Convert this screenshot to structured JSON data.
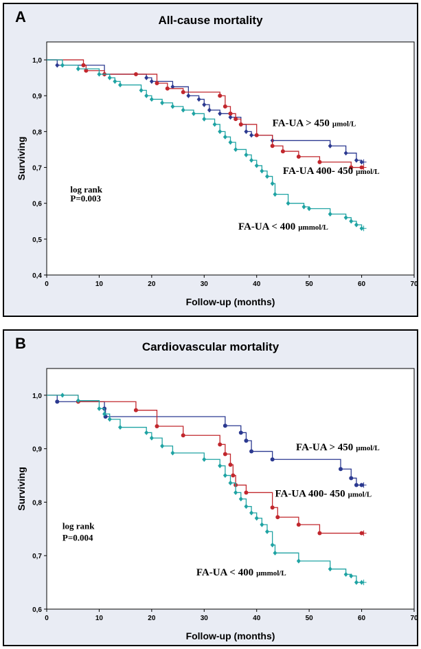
{
  "chart_data": [
    {
      "panel": "A",
      "type": "line",
      "subtype": "kaplan-meier-step",
      "title": "All-cause mortality",
      "xlabel": "Follow-up (months)",
      "ylabel": "Surviving",
      "xlim": [
        0,
        70
      ],
      "ylim": [
        0.4,
        1.05
      ],
      "x_ticks": [
        "0",
        "10",
        "20",
        "30",
        "40",
        "50",
        "60",
        "70"
      ],
      "y_ticks": [
        "0,4",
        "0,5",
        "0,6",
        "0,7",
        "0,8",
        "0,9",
        "1,0"
      ],
      "series": [
        {
          "name": "FA-UA > 450 µmol/L",
          "color": "#2b3990",
          "marker": "diamond",
          "points": [
            [
              0,
              1.0
            ],
            [
              2,
              0.985
            ],
            [
              11,
              0.96
            ],
            [
              19,
              0.95
            ],
            [
              20,
              0.94
            ],
            [
              24,
              0.925
            ],
            [
              27,
              0.9
            ],
            [
              29,
              0.89
            ],
            [
              30,
              0.875
            ],
            [
              31,
              0.86
            ],
            [
              33,
              0.85
            ],
            [
              35,
              0.84
            ],
            [
              37,
              0.82
            ],
            [
              38,
              0.8
            ],
            [
              39,
              0.79
            ],
            [
              43,
              0.775
            ],
            [
              54,
              0.76
            ],
            [
              57,
              0.74
            ],
            [
              59,
              0.72
            ],
            [
              60,
              0.715
            ]
          ]
        },
        {
          "name": "FA-UA 400- 450 µmol/L",
          "color": "#c1272d",
          "marker": "circle",
          "points": [
            [
              0,
              1.0
            ],
            [
              7,
              0.985
            ],
            [
              7.5,
              0.97
            ],
            [
              11,
              0.96
            ],
            [
              17,
              0.96
            ],
            [
              21,
              0.935
            ],
            [
              23,
              0.92
            ],
            [
              26,
              0.91
            ],
            [
              33,
              0.9
            ],
            [
              34,
              0.87
            ],
            [
              35,
              0.85
            ],
            [
              36,
              0.835
            ],
            [
              37,
              0.82
            ],
            [
              40,
              0.79
            ],
            [
              43,
              0.76
            ],
            [
              45,
              0.745
            ],
            [
              48,
              0.73
            ],
            [
              52,
              0.715
            ],
            [
              58,
              0.7
            ],
            [
              60,
              0.7
            ]
          ]
        },
        {
          "name": "FA-UA < 400 µmmol/L",
          "color": "#1fa3a3",
          "marker": "diamond",
          "points": [
            [
              0,
              1.0
            ],
            [
              3,
              0.985
            ],
            [
              6,
              0.975
            ],
            [
              10,
              0.96
            ],
            [
              12,
              0.95
            ],
            [
              13,
              0.94
            ],
            [
              14,
              0.93
            ],
            [
              18,
              0.915
            ],
            [
              19,
              0.9
            ],
            [
              20,
              0.89
            ],
            [
              22,
              0.88
            ],
            [
              24,
              0.87
            ],
            [
              26,
              0.86
            ],
            [
              28,
              0.85
            ],
            [
              30,
              0.835
            ],
            [
              32,
              0.82
            ],
            [
              33,
              0.8
            ],
            [
              34,
              0.785
            ],
            [
              35,
              0.77
            ],
            [
              36,
              0.75
            ],
            [
              38,
              0.735
            ],
            [
              39,
              0.72
            ],
            [
              40,
              0.705
            ],
            [
              41,
              0.69
            ],
            [
              42,
              0.675
            ],
            [
              43,
              0.655
            ],
            [
              43.5,
              0.625
            ],
            [
              46,
              0.6
            ],
            [
              49,
              0.59
            ],
            [
              50,
              0.585
            ],
            [
              54,
              0.57
            ],
            [
              57,
              0.56
            ],
            [
              58,
              0.55
            ],
            [
              59,
              0.54
            ],
            [
              60,
              0.53
            ]
          ]
        }
      ],
      "annotations": [
        {
          "id": "label-high",
          "text": "FA-UA  > 450",
          "unit": "µmol/L",
          "x": 43,
          "y": 0.815
        },
        {
          "id": "label-mid",
          "text": "FA-UA  400- 450",
          "unit": "µmol/L",
          "x": 45,
          "y": 0.682
        },
        {
          "id": "label-low",
          "text": "FA-UA < 400",
          "unit": "µmmol/L",
          "x": 36.5,
          "y": 0.527
        },
        {
          "id": "stat-line1",
          "text": "log rank",
          "x": 4.5,
          "y": 0.63
        },
        {
          "id": "stat-line2",
          "text": "P=0.003",
          "x": 4.5,
          "y": 0.605
        }
      ]
    },
    {
      "panel": "B",
      "type": "line",
      "subtype": "kaplan-meier-step",
      "title": "Cardiovascular mortality",
      "xlabel": "Follow-up (months)",
      "ylabel": "Surviving",
      "xlim": [
        0,
        70
      ],
      "ylim": [
        0.6,
        1.05
      ],
      "x_ticks": [
        "0",
        "10",
        "20",
        "30",
        "40",
        "50",
        "60",
        "70"
      ],
      "y_ticks": [
        "0,6",
        "0,7",
        "0,8",
        "0,9",
        "1,0"
      ],
      "series": [
        {
          "name": "FA-UA > 450 µmol/L",
          "color": "#2b3990",
          "marker": "circle",
          "points": [
            [
              0,
              1.0
            ],
            [
              2,
              0.988
            ],
            [
              11,
              0.975
            ],
            [
              11.2,
              0.96
            ],
            [
              34,
              0.943
            ],
            [
              37,
              0.93
            ],
            [
              38,
              0.915
            ],
            [
              39,
              0.895
            ],
            [
              43,
              0.88
            ],
            [
              56,
              0.862
            ],
            [
              58,
              0.845
            ],
            [
              59,
              0.832
            ],
            [
              60,
              0.832
            ]
          ]
        },
        {
          "name": "FA-UA 400- 450 µmol/L",
          "color": "#c1272d",
          "marker": "circle",
          "points": [
            [
              0,
              1.0
            ],
            [
              6,
              0.988
            ],
            [
              17,
              0.972
            ],
            [
              21,
              0.942
            ],
            [
              26,
              0.925
            ],
            [
              33,
              0.908
            ],
            [
              34,
              0.89
            ],
            [
              35,
              0.87
            ],
            [
              35.5,
              0.85
            ],
            [
              36,
              0.832
            ],
            [
              38,
              0.818
            ],
            [
              43,
              0.79
            ],
            [
              44,
              0.772
            ],
            [
              48,
              0.758
            ],
            [
              52,
              0.742
            ],
            [
              60,
              0.742
            ]
          ]
        },
        {
          "name": "FA-UA < 400 µmmol/L",
          "color": "#1fa3a3",
          "marker": "diamond",
          "points": [
            [
              0,
              1.0
            ],
            [
              3,
              1.0
            ],
            [
              6,
              0.99
            ],
            [
              10,
              0.975
            ],
            [
              11,
              0.965
            ],
            [
              12,
              0.955
            ],
            [
              14,
              0.94
            ],
            [
              19,
              0.93
            ],
            [
              20,
              0.92
            ],
            [
              22,
              0.905
            ],
            [
              24,
              0.892
            ],
            [
              30,
              0.88
            ],
            [
              33,
              0.868
            ],
            [
              34,
              0.85
            ],
            [
              35,
              0.836
            ],
            [
              36,
              0.818
            ],
            [
              37,
              0.806
            ],
            [
              38,
              0.792
            ],
            [
              39,
              0.78
            ],
            [
              40,
              0.77
            ],
            [
              41,
              0.758
            ],
            [
              42,
              0.745
            ],
            [
              43,
              0.72
            ],
            [
              43.5,
              0.705
            ],
            [
              48,
              0.69
            ],
            [
              54,
              0.675
            ],
            [
              57,
              0.665
            ],
            [
              58,
              0.662
            ],
            [
              59,
              0.65
            ],
            [
              60,
              0.65
            ]
          ]
        }
      ],
      "annotations": [
        {
          "id": "label-high",
          "text": "FA-UA > 450",
          "unit": "µmol/L",
          "x": 47.5,
          "y": 0.897
        },
        {
          "id": "label-mid",
          "text": "FA-UA 400- 450",
          "unit": "µmol/L",
          "x": 43.5,
          "y": 0.81
        },
        {
          "id": "label-low",
          "text": "FA-UA < 400",
          "unit": "µmmol/L",
          "x": 28.5,
          "y": 0.663
        },
        {
          "id": "stat-line1",
          "text": "log rank",
          "x": 3,
          "y": 0.75
        },
        {
          "id": "stat-line2",
          "text": "P=0.004",
          "x": 3,
          "y": 0.728
        }
      ]
    }
  ]
}
